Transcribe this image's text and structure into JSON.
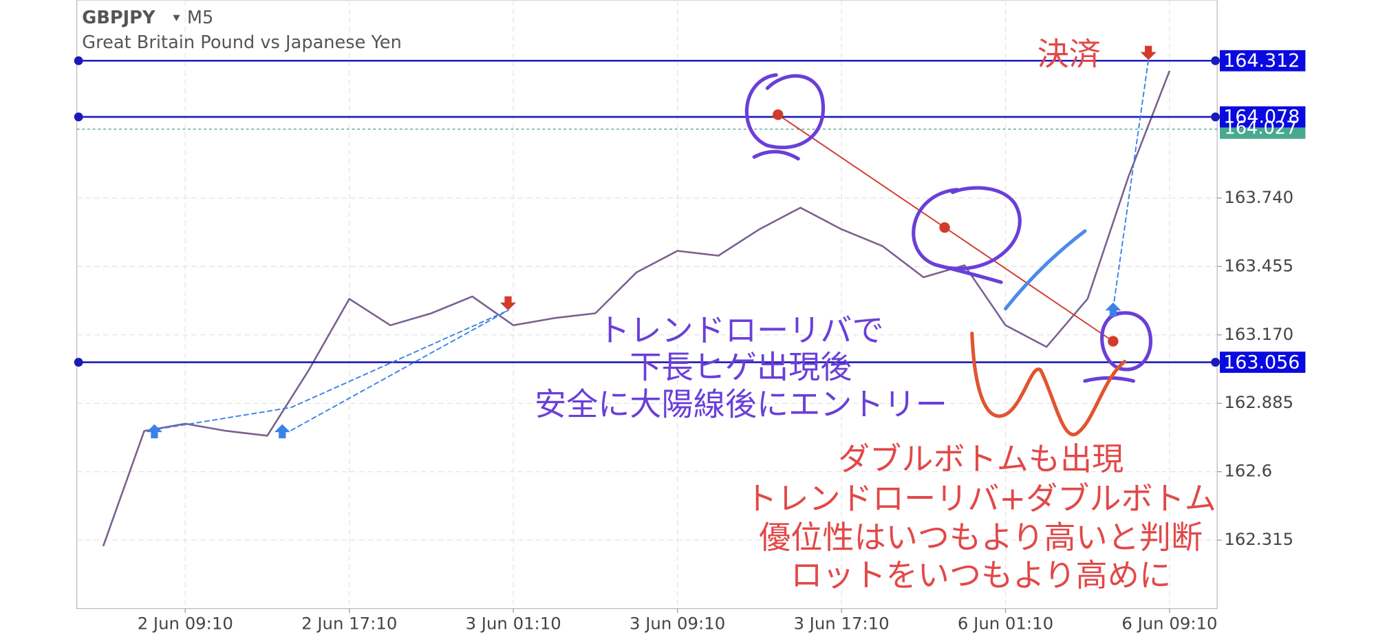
{
  "chart_data": {
    "type": "line",
    "title": "GBPJPY",
    "timeframe": "M5",
    "subtitle": "Great Britain Pound vs Japanese Yen",
    "categories": [
      null,
      null,
      "2 Jun 09:10",
      null,
      null,
      null,
      "2 Jun 17:10",
      null,
      null,
      null,
      "3 Jun 01:10",
      null,
      null,
      null,
      "3 Jun 09:10",
      null,
      null,
      null,
      "3 Jun 17:10",
      null,
      null,
      null,
      "6 Jun 01:10",
      null,
      null,
      null,
      "6 Jun 09:10"
    ],
    "values": [
      162.29,
      162.77,
      162.8,
      162.77,
      162.75,
      163.02,
      163.32,
      163.21,
      163.26,
      163.33,
      163.21,
      163.24,
      163.26,
      163.43,
      163.52,
      163.5,
      163.61,
      163.7,
      163.61,
      163.54,
      163.41,
      163.46,
      163.21,
      163.12,
      163.32,
      163.83,
      164.27
    ],
    "color": "#7a5f8f",
    "ylim": [
      162.03,
      164.565
    ],
    "yticks": [
      162.315,
      162.6,
      {
        "value": 162.885,
        "label": "162.885"
      },
      {
        "value": 163.17,
        "label": "163.170"
      },
      163.455,
      {
        "value": 163.74,
        "label": "163.740"
      }
    ],
    "grid": true,
    "levels": [
      164.312,
      {
        "value": 164.078,
        "label": "164.078"
      },
      163.056
    ],
    "current_price": {
      "value": 164.027,
      "label": "164.027"
    },
    "annotations": {
      "close": "決済",
      "entry": [
        "トレンドローリバで",
        "下長ヒゲ出現後",
        "安全に大陽線後にエントリー"
      ],
      "reason": [
        "ダブルボトムも出現",
        "トレンドローリバ+ダブルボトム",
        "優位性はいつもより高いと判断",
        "ロットをいつもより高めに"
      ]
    }
  }
}
